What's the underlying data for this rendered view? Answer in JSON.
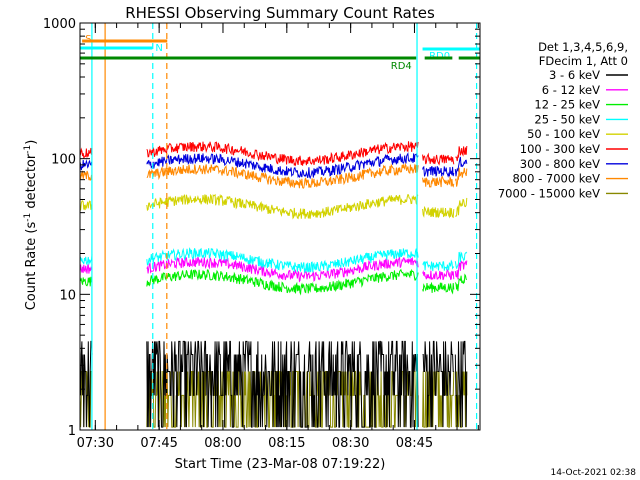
{
  "chart_data": {
    "type": "line",
    "title": "RHESSI Observing Summary Count Rates",
    "xlabel": "Start Time (23-Mar-08 07:19:22)",
    "ylabel_main": "Count Rate (s",
    "ylabel_exp1": "-1",
    "ylabel_mid": " detector",
    "ylabel_exp2": "-1",
    "ylabel_close": ")",
    "y_scale": "log",
    "ylim": [
      1,
      1000
    ],
    "y_ticks": [
      "1",
      "10",
      "100",
      "1000"
    ],
    "x_ticks": [
      "07:30",
      "07:45",
      "08:00",
      "08:15",
      "08:30",
      "08:45"
    ],
    "xlim_minutes": [
      7.0,
      101.0
    ],
    "x_tick_minutes": [
      10.6,
      25.6,
      40.6,
      55.6,
      70.6,
      85.6
    ],
    "timestamp": "14-Oct-2021 02:38",
    "legend_position": "right",
    "legend_header": [
      "Det 1,3,4,5,6,9,",
      "FDecim 1, Att 0"
    ],
    "series": [
      {
        "name": "3 - 6 keV",
        "color": "#000000",
        "level": 3.5
      },
      {
        "name": "6 - 12 keV",
        "color": "#ff00ff",
        "level": 15.5
      },
      {
        "name": "12 - 25 keV",
        "color": "#00ee00",
        "level": 12.5
      },
      {
        "name": "25 - 50 keV",
        "color": "#00ffff",
        "level": 18.0
      },
      {
        "name": "50 - 100 keV",
        "color": "#d2d200",
        "level": 45.0
      },
      {
        "name": "100 - 300 keV",
        "color": "#ff0000",
        "level": 110.0
      },
      {
        "name": "300 - 800 keV",
        "color": "#0000dd",
        "level": 90.0
      },
      {
        "name": "800 - 7000 keV",
        "color": "#ff8800",
        "level": 75.0
      },
      {
        "name": "7000 - 15000 keV",
        "color": "#888800",
        "level": 2.2
      }
    ],
    "flag_bars": [
      {
        "label": "S",
        "color": "#ff8800",
        "x_start": 7.5,
        "x_end": 27.5
      },
      {
        "label": "N",
        "color": "#00ffff",
        "x_start": 7.0,
        "x_end": 24.0
      },
      {
        "label": "RD0",
        "color": "#00ffff",
        "x_start": 87.5,
        "x_end": 101.0
      },
      {
        "label": "RD4",
        "color": "#008800",
        "x_start": 7.0,
        "x_end": 101.0
      }
    ],
    "night_markers": [
      {
        "kind": "S",
        "color": "#ff8800",
        "start": 12.9,
        "end": 27.4
      },
      {
        "kind": "N",
        "color": "#00ffff",
        "start": 9.8,
        "end": 24.1
      },
      {
        "kind": "N",
        "color": "#00ffff",
        "start": 86.2,
        "end": 100.2
      }
    ]
  }
}
